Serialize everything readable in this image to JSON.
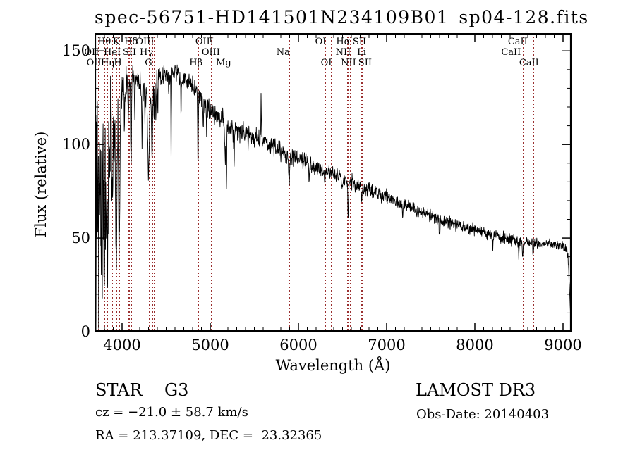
{
  "figure": {
    "annotations": {
      "object_type": "STAR",
      "subclass": "G3",
      "survey": "LAMOST DR3",
      "cz": "cz = −21.0 ± 58.7 km/s",
      "obs_date": "Obs-Date: 20140403",
      "ra_dec": "RA = 213.37109, DEC =  23.32365"
    }
  },
  "chart_data": {
    "type": "line",
    "title": "spec-56751-HD141501N234109B01_sp04-128.fits",
    "xlabel": "Wavelength (Å)",
    "ylabel": "Flux (relative)",
    "xlim": [
      3688,
      9096
    ],
    "ylim": [
      0,
      159.5
    ],
    "x_ticks": [
      4000,
      5000,
      6000,
      7000,
      8000,
      9000
    ],
    "x_minor_step": 100,
    "y_ticks": [
      0,
      50,
      100,
      150
    ],
    "y_minor_step": 10,
    "grid": false,
    "line_color": "#000000",
    "marker_color": "#9b3030",
    "seed": 1234,
    "spectral_lines": [
      {
        "label": "OII",
        "row": 2,
        "wl": 3726.2,
        "dx": -9
      },
      {
        "label": "OII",
        "row": 3,
        "wl": 3728.9,
        "dx": -6
      },
      {
        "label": "Hθ",
        "row": 1,
        "wl": 3797.9,
        "dx": 0
      },
      {
        "label": "Hη",
        "row": 3,
        "wl": 3835.4,
        "dx": 0
      },
      {
        "label": "HeI",
        "row": 2,
        "wl": 3889.0,
        "dx": 0
      },
      {
        "label": "K",
        "row": 1,
        "wl": 3933.7,
        "dx": 0
      },
      {
        "label": "H",
        "row": 3,
        "wl": 3968.5,
        "dx": -2
      },
      {
        "label": "SII",
        "row": 2,
        "wl": 4068.6,
        "dx": 2
      },
      {
        "label": "",
        "row": 0,
        "wl": 4076.3,
        "dx": 0
      },
      {
        "label": "Hδ",
        "row": 1,
        "wl": 4101.7,
        "dx": 0
      },
      {
        "label": "G",
        "row": 3,
        "wl": 4300.4,
        "dx": 0
      },
      {
        "label": "Hγ",
        "row": 2,
        "wl": 4340.5,
        "dx": -8
      },
      {
        "label": "OIII",
        "row": 1,
        "wl": 4363.2,
        "dx": -13
      },
      {
        "label": "Hβ",
        "row": 3,
        "wl": 4861.3,
        "dx": -3
      },
      {
        "label": "OIII",
        "row": 1,
        "wl": 4958.9,
        "dx": -3
      },
      {
        "label": "OIII",
        "row": 2,
        "wl": 5006.8,
        "dx": 0
      },
      {
        "label": "Mg",
        "row": 3,
        "wl": 5175.3,
        "dx": -3
      },
      {
        "label": "Na",
        "row": 2,
        "wl": 5890.0,
        "dx": -8
      },
      {
        "label": "",
        "row": 0,
        "wl": 5895.9,
        "dx": 0
      },
      {
        "label": "OI",
        "row": 1,
        "wl": 6300.3,
        "dx": -6
      },
      {
        "label": "OI",
        "row": 3,
        "wl": 6363.8,
        "dx": -6
      },
      {
        "label": "NII",
        "row": 2,
        "wl": 6548.0,
        "dx": -5
      },
      {
        "label": "Hα",
        "row": 1,
        "wl": 6562.8,
        "dx": -7
      },
      {
        "label": "NII",
        "row": 3,
        "wl": 6583.5,
        "dx": -2
      },
      {
        "label": "Li",
        "row": 2,
        "wl": 6707.8,
        "dx": 1
      },
      {
        "label": "SII",
        "row": 1,
        "wl": 6716.4,
        "dx": -3
      },
      {
        "label": "SII",
        "row": 3,
        "wl": 6730.8,
        "dx": 3
      },
      {
        "label": "CaII",
        "row": 2,
        "wl": 8498.0,
        "dx": -11
      },
      {
        "label": "CaII",
        "row": 1,
        "wl": 8542.1,
        "dx": -7
      },
      {
        "label": "CaII",
        "row": 3,
        "wl": 8662.1,
        "dx": -6
      }
    ],
    "continuum": [
      [
        3688,
        85
      ],
      [
        3740,
        100
      ],
      [
        3800,
        108
      ],
      [
        3850,
        112
      ],
      [
        3900,
        116
      ],
      [
        3950,
        121
      ],
      [
        4000,
        127
      ],
      [
        4060,
        134
      ],
      [
        4150,
        138
      ],
      [
        4240,
        130
      ],
      [
        4320,
        126
      ],
      [
        4400,
        134
      ],
      [
        4500,
        137
      ],
      [
        4600,
        139
      ],
      [
        4650,
        137
      ],
      [
        4750,
        133
      ],
      [
        4850,
        128
      ],
      [
        4950,
        121
      ],
      [
        5050,
        116
      ],
      [
        5150,
        112
      ],
      [
        5250,
        108
      ],
      [
        5400,
        106
      ],
      [
        5550,
        103
      ],
      [
        5700,
        99
      ],
      [
        5850,
        95
      ],
      [
        6000,
        92
      ],
      [
        6150,
        89
      ],
      [
        6300,
        86
      ],
      [
        6450,
        83
      ],
      [
        6600,
        79
      ],
      [
        6750,
        76
      ],
      [
        6900,
        74
      ],
      [
        7050,
        71
      ],
      [
        7200,
        68
      ],
      [
        7350,
        65
      ],
      [
        7500,
        62
      ],
      [
        7650,
        59
      ],
      [
        7800,
        57
      ],
      [
        7950,
        55
      ],
      [
        8100,
        53
      ],
      [
        8250,
        51
      ],
      [
        8400,
        49
      ],
      [
        8550,
        48
      ],
      [
        8700,
        47
      ],
      [
        8850,
        47
      ],
      [
        9000,
        46
      ],
      [
        9045,
        44
      ],
      [
        9060,
        38
      ],
      [
        9075,
        20
      ],
      [
        9090,
        5
      ],
      [
        9096,
        2
      ]
    ],
    "noise_profile": [
      [
        3688,
        30
      ],
      [
        3800,
        20
      ],
      [
        3900,
        15
      ],
      [
        3980,
        9
      ],
      [
        4100,
        6
      ],
      [
        4500,
        4.5
      ],
      [
        5000,
        4.5
      ],
      [
        5500,
        4.5
      ],
      [
        6000,
        4
      ],
      [
        6500,
        3.5
      ],
      [
        7000,
        3
      ],
      [
        7500,
        2.8
      ],
      [
        8000,
        2.5
      ],
      [
        8600,
        2.2
      ],
      [
        9096,
        2
      ]
    ],
    "absorption_lines": [
      [
        3726,
        18,
        5
      ],
      [
        3750,
        25,
        4
      ],
      [
        3770,
        30,
        4
      ],
      [
        3798,
        50,
        6
      ],
      [
        3820,
        35,
        4
      ],
      [
        3835,
        60,
        6
      ],
      [
        3860,
        30,
        4
      ],
      [
        3889,
        50,
        5
      ],
      [
        3910,
        25,
        4
      ],
      [
        3934,
        85,
        7
      ],
      [
        3968,
        80,
        7
      ],
      [
        4026,
        20,
        3
      ],
      [
        4069,
        18,
        3
      ],
      [
        4076,
        15,
        3
      ],
      [
        4102,
        48,
        5
      ],
      [
        4144,
        18,
        3
      ],
      [
        4226,
        30,
        3
      ],
      [
        4260,
        15,
        4
      ],
      [
        4300,
        42,
        8
      ],
      [
        4340,
        38,
        5
      ],
      [
        4363,
        14,
        3
      ],
      [
        4383,
        25,
        3
      ],
      [
        4405,
        15,
        3
      ],
      [
        4528,
        12,
        3
      ],
      [
        4556,
        45,
        3
      ],
      [
        4668,
        20,
        3
      ],
      [
        4861,
        42,
        4
      ],
      [
        4920,
        15,
        3
      ],
      [
        4957,
        12,
        3
      ],
      [
        5170,
        20,
        6
      ],
      [
        5184,
        35,
        3
      ],
      [
        5270,
        20,
        4
      ],
      [
        5430,
        10,
        3
      ],
      [
        5894,
        16,
        5
      ],
      [
        6122,
        10,
        3
      ],
      [
        6300,
        7,
        3
      ],
      [
        6495,
        8,
        4
      ],
      [
        6563,
        17,
        4
      ],
      [
        6716,
        5,
        3
      ],
      [
        7180,
        7,
        5
      ],
      [
        7600,
        9,
        5
      ],
      [
        8205,
        6,
        4
      ],
      [
        8498,
        8,
        4
      ],
      [
        8542,
        9,
        4
      ],
      [
        8662,
        8,
        4
      ]
    ],
    "emission_spikes": [
      [
        5576,
        22,
        2.5
      ]
    ],
    "blue_chaos": {
      "limit": 4000,
      "max_depth": 125,
      "power": 1.8
    }
  }
}
